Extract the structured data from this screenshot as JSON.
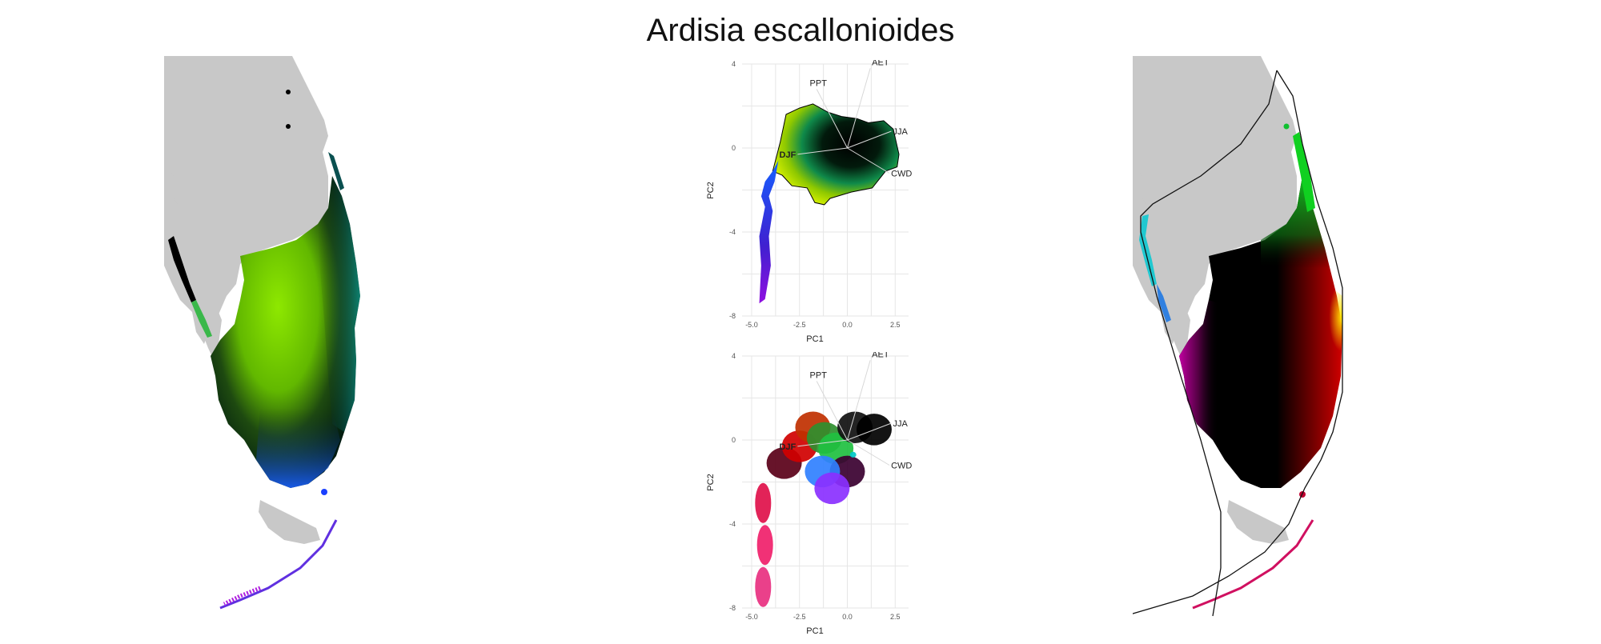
{
  "figure": {
    "title": "Ardisia escallonioides"
  },
  "colors": {
    "land": "#c8c8c8",
    "green": "#7fe000",
    "dark": "#000000",
    "blue": "#1560ff",
    "purple": "#9a00ff",
    "red": "#e00000",
    "magenta": "#b0006a",
    "cyan": "#00d0d0",
    "yellow": "#f0e000"
  },
  "chart_data": [
    {
      "type": "scatter",
      "panel": "pca-top",
      "xlabel": "PC1",
      "ylabel": "PC2",
      "xlim": [
        -5.5,
        3.2
      ],
      "ylim": [
        -8,
        4
      ],
      "x_ticks": [
        "-5.0",
        "-2.5",
        "0.0",
        "2.5"
      ],
      "y_ticks": [
        "4",
        "0",
        "-4",
        "-8"
      ],
      "loadings": [
        {
          "name": "PPT",
          "x": -1.6,
          "y": 2.8
        },
        {
          "name": "AET",
          "x": 1.2,
          "y": 3.8
        },
        {
          "name": "JJA",
          "x": 2.3,
          "y": 0.8
        },
        {
          "name": "DJF",
          "x": -2.6,
          "y": -0.3
        },
        {
          "name": "CWD",
          "x": 2.2,
          "y": -1.2
        }
      ],
      "outline": [
        [
          -3.5,
          0.3
        ],
        [
          -3.2,
          1.6
        ],
        [
          -2.5,
          1.9
        ],
        [
          -1.8,
          2.1
        ],
        [
          -1.0,
          1.7
        ],
        [
          -0.3,
          1.5
        ],
        [
          0.5,
          1.4
        ],
        [
          1.1,
          1.2
        ],
        [
          1.9,
          1.3
        ],
        [
          2.4,
          0.9
        ],
        [
          2.7,
          -0.3
        ],
        [
          2.6,
          -0.9
        ],
        [
          2.0,
          -1.1
        ],
        [
          1.3,
          -1.9
        ],
        [
          0.2,
          -2.1
        ],
        [
          -0.9,
          -2.4
        ],
        [
          -1.2,
          -2.7
        ],
        [
          -1.7,
          -2.6
        ],
        [
          -2.1,
          -1.9
        ],
        [
          -2.9,
          -1.8
        ],
        [
          -3.4,
          -1.3
        ],
        [
          -3.9,
          -1.1
        ],
        [
          -4.3,
          -1.6
        ],
        [
          -4.5,
          -2.3
        ],
        [
          -4.3,
          -2.8
        ],
        [
          -4.6,
          -4.2
        ],
        [
          -4.5,
          -5.6
        ],
        [
          -4.6,
          -7.4
        ],
        [
          -4.3,
          -7.2
        ],
        [
          -4.0,
          -5.6
        ],
        [
          -4.1,
          -4.2
        ],
        [
          -3.9,
          -3.0
        ],
        [
          -4.1,
          -2.3
        ],
        [
          -3.8,
          -1.6
        ],
        [
          -3.6,
          -0.6
        ]
      ]
    },
    {
      "type": "scatter",
      "panel": "pca-bottom",
      "xlabel": "PC1",
      "ylabel": "PC2",
      "xlim": [
        -5.5,
        3.2
      ],
      "ylim": [
        -8,
        4
      ],
      "x_ticks": [
        "-5.0",
        "-2.5",
        "0.0",
        "2.5"
      ],
      "y_ticks": [
        "4",
        "0",
        "-4",
        "-8"
      ],
      "loadings": [
        {
          "name": "PPT",
          "x": -1.6,
          "y": 2.8
        },
        {
          "name": "AET",
          "x": 1.2,
          "y": 3.8
        },
        {
          "name": "JJA",
          "x": 2.3,
          "y": 0.8
        },
        {
          "name": "DJF",
          "x": -2.6,
          "y": -0.3
        },
        {
          "name": "CWD",
          "x": 2.2,
          "y": -1.2
        }
      ],
      "clusters": [
        {
          "x": -3.3,
          "y": -1.1,
          "color": "#5a0018"
        },
        {
          "x": -2.5,
          "y": -0.3,
          "color": "#d00000"
        },
        {
          "x": -1.8,
          "y": 0.6,
          "color": "#c03000"
        },
        {
          "x": -1.2,
          "y": 0.1,
          "color": "#2f8f2f"
        },
        {
          "x": -0.6,
          "y": -0.4,
          "color": "#20c040"
        },
        {
          "x": 0.4,
          "y": 0.6,
          "color": "#101010"
        },
        {
          "x": 1.4,
          "y": 0.5,
          "color": "#000000"
        },
        {
          "x": 0.0,
          "y": -1.5,
          "color": "#3a0030"
        },
        {
          "x": -1.3,
          "y": -1.5,
          "color": "#3080ff"
        },
        {
          "x": -0.8,
          "y": -2.3,
          "color": "#8a30ff"
        },
        {
          "x": -4.4,
          "y": -3.0,
          "color": "#e0104a"
        },
        {
          "x": -4.3,
          "y": -5.0,
          "color": "#f0206a"
        },
        {
          "x": -4.4,
          "y": -7.0,
          "color": "#e83080"
        },
        {
          "x": 0.3,
          "y": -0.7,
          "color": "#00c8c8"
        }
      ]
    }
  ]
}
